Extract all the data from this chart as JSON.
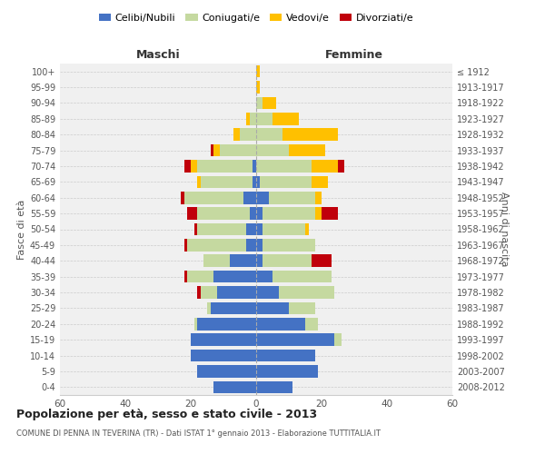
{
  "age_groups": [
    "0-4",
    "5-9",
    "10-14",
    "15-19",
    "20-24",
    "25-29",
    "30-34",
    "35-39",
    "40-44",
    "45-49",
    "50-54",
    "55-59",
    "60-64",
    "65-69",
    "70-74",
    "75-79",
    "80-84",
    "85-89",
    "90-94",
    "95-99",
    "100+"
  ],
  "birth_years": [
    "2008-2012",
    "2003-2007",
    "1998-2002",
    "1993-1997",
    "1988-1992",
    "1983-1987",
    "1978-1982",
    "1973-1977",
    "1968-1972",
    "1963-1967",
    "1958-1962",
    "1953-1957",
    "1948-1952",
    "1943-1947",
    "1938-1942",
    "1933-1937",
    "1928-1932",
    "1923-1927",
    "1918-1922",
    "1913-1917",
    "≤ 1912"
  ],
  "male": {
    "celibi": [
      13,
      18,
      20,
      20,
      18,
      14,
      12,
      13,
      8,
      3,
      3,
      2,
      4,
      1,
      1,
      0,
      0,
      0,
      0,
      0,
      0
    ],
    "coniugati": [
      0,
      0,
      0,
      0,
      1,
      1,
      5,
      8,
      8,
      18,
      15,
      16,
      18,
      16,
      17,
      11,
      5,
      2,
      0,
      0,
      0
    ],
    "vedovi": [
      0,
      0,
      0,
      0,
      0,
      0,
      0,
      0,
      0,
      0,
      0,
      0,
      0,
      1,
      2,
      2,
      2,
      1,
      0,
      0,
      0
    ],
    "divorziati": [
      0,
      0,
      0,
      0,
      0,
      0,
      1,
      1,
      0,
      1,
      1,
      3,
      1,
      0,
      2,
      1,
      0,
      0,
      0,
      0,
      0
    ]
  },
  "female": {
    "nubili": [
      11,
      19,
      18,
      24,
      15,
      10,
      7,
      5,
      2,
      2,
      2,
      2,
      4,
      1,
      0,
      0,
      0,
      0,
      0,
      0,
      0
    ],
    "coniugate": [
      0,
      0,
      0,
      2,
      4,
      8,
      17,
      18,
      15,
      16,
      13,
      16,
      14,
      16,
      17,
      10,
      8,
      5,
      2,
      0,
      0
    ],
    "vedove": [
      0,
      0,
      0,
      0,
      0,
      0,
      0,
      0,
      0,
      0,
      1,
      2,
      2,
      5,
      8,
      11,
      17,
      8,
      4,
      1,
      1
    ],
    "divorziate": [
      0,
      0,
      0,
      0,
      0,
      0,
      0,
      0,
      6,
      0,
      0,
      5,
      0,
      0,
      2,
      0,
      0,
      0,
      0,
      0,
      0
    ]
  },
  "colors": {
    "celibi": "#4472c4",
    "coniugati": "#c5d9a0",
    "vedovi": "#ffc000",
    "divorziati": "#c0000b"
  },
  "xlim": 60,
  "title": "Popolazione per età, sesso e stato civile - 2013",
  "subtitle": "COMUNE DI PENNA IN TEVERINA (TR) - Dati ISTAT 1° gennaio 2013 - Elaborazione TUTTITALIA.IT",
  "ylabel_left": "Fasce di età",
  "ylabel_right": "Anni di nascita",
  "legend_labels": [
    "Celibi/Nubili",
    "Coniugati/e",
    "Vedovi/e",
    "Divorziati/e"
  ],
  "maschi_label": "Maschi",
  "femmine_label": "Femmine",
  "background_color": "#ffffff",
  "grid_color": "#cccccc"
}
